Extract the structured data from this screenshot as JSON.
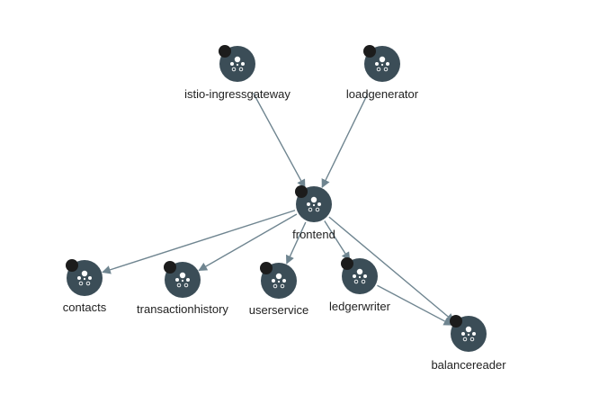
{
  "graph": {
    "nodes": [
      {
        "id": "istio-ingressgateway",
        "label": "istio-ingressgateway",
        "icon": "service-icon",
        "status_color": "#1c1c1c"
      },
      {
        "id": "loadgenerator",
        "label": "loadgenerator",
        "icon": "service-icon",
        "status_color": "#1c1c1c"
      },
      {
        "id": "frontend",
        "label": "frontend",
        "icon": "service-icon",
        "status_color": "#1c1c1c"
      },
      {
        "id": "contacts",
        "label": "contacts",
        "icon": "service-icon",
        "status_color": "#1c1c1c"
      },
      {
        "id": "transactionhistory",
        "label": "transactionhistory",
        "icon": "service-icon",
        "status_color": "#1c1c1c"
      },
      {
        "id": "userservice",
        "label": "userservice",
        "icon": "service-icon",
        "status_color": "#1c1c1c"
      },
      {
        "id": "ledgerwriter",
        "label": "ledgerwriter",
        "icon": "service-icon",
        "status_color": "#1c1c1c"
      },
      {
        "id": "balancereader",
        "label": "balancereader",
        "icon": "service-icon",
        "status_color": "#1c1c1c"
      }
    ],
    "edges": [
      {
        "from": "istio-ingressgateway",
        "to": "frontend"
      },
      {
        "from": "loadgenerator",
        "to": "frontend"
      },
      {
        "from": "frontend",
        "to": "contacts"
      },
      {
        "from": "frontend",
        "to": "transactionhistory"
      },
      {
        "from": "frontend",
        "to": "userservice"
      },
      {
        "from": "frontend",
        "to": "ledgerwriter"
      },
      {
        "from": "frontend",
        "to": "balancereader"
      },
      {
        "from": "ledgerwriter",
        "to": "balancereader"
      }
    ],
    "colors": {
      "node_fill": "#3b4d57",
      "edge": "#6f8590",
      "status": "#1c1c1c",
      "glyph": "#ffffff"
    }
  }
}
